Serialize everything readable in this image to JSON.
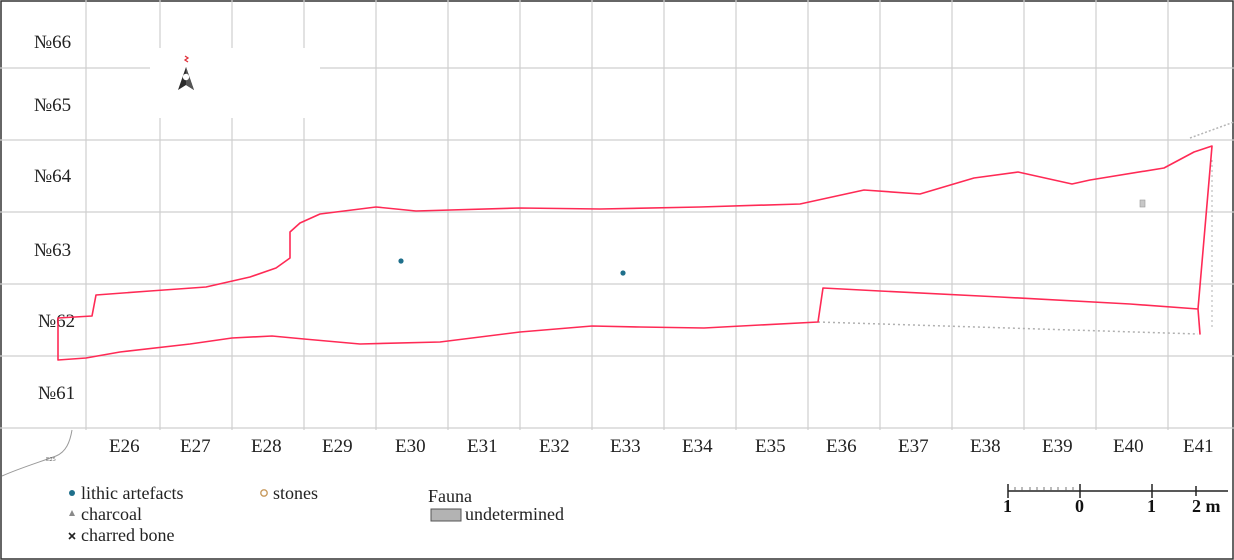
{
  "rows": [
    "№66",
    "№65",
    "№64",
    "№63",
    "№62",
    "№61"
  ],
  "columns": [
    "E26",
    "E27",
    "E28",
    "E29",
    "E30",
    "E31",
    "E32",
    "E33",
    "E34",
    "E35",
    "E36",
    "E37",
    "E38",
    "E39",
    "E40",
    "E41"
  ],
  "edge_label": "E25",
  "north_arrow": {
    "icon": "north-arrow-icon",
    "letter": "N"
  },
  "legend": {
    "lithic": "lithic artefacts",
    "stones": "stones",
    "charcoal": "charcoal",
    "charred_bone": "charred bone",
    "fauna_heading": "Fauna",
    "fauna_undetermined": "undetermined"
  },
  "scale_bar": {
    "labels": [
      "1",
      "0",
      "1",
      "2 m"
    ]
  },
  "colors": {
    "outline": "#ff2a55",
    "grid": "#cfcfcf",
    "lithic": "#1f6f8b",
    "stone": "#c89a5e",
    "fauna_fill": "#b3b3b3"
  }
}
